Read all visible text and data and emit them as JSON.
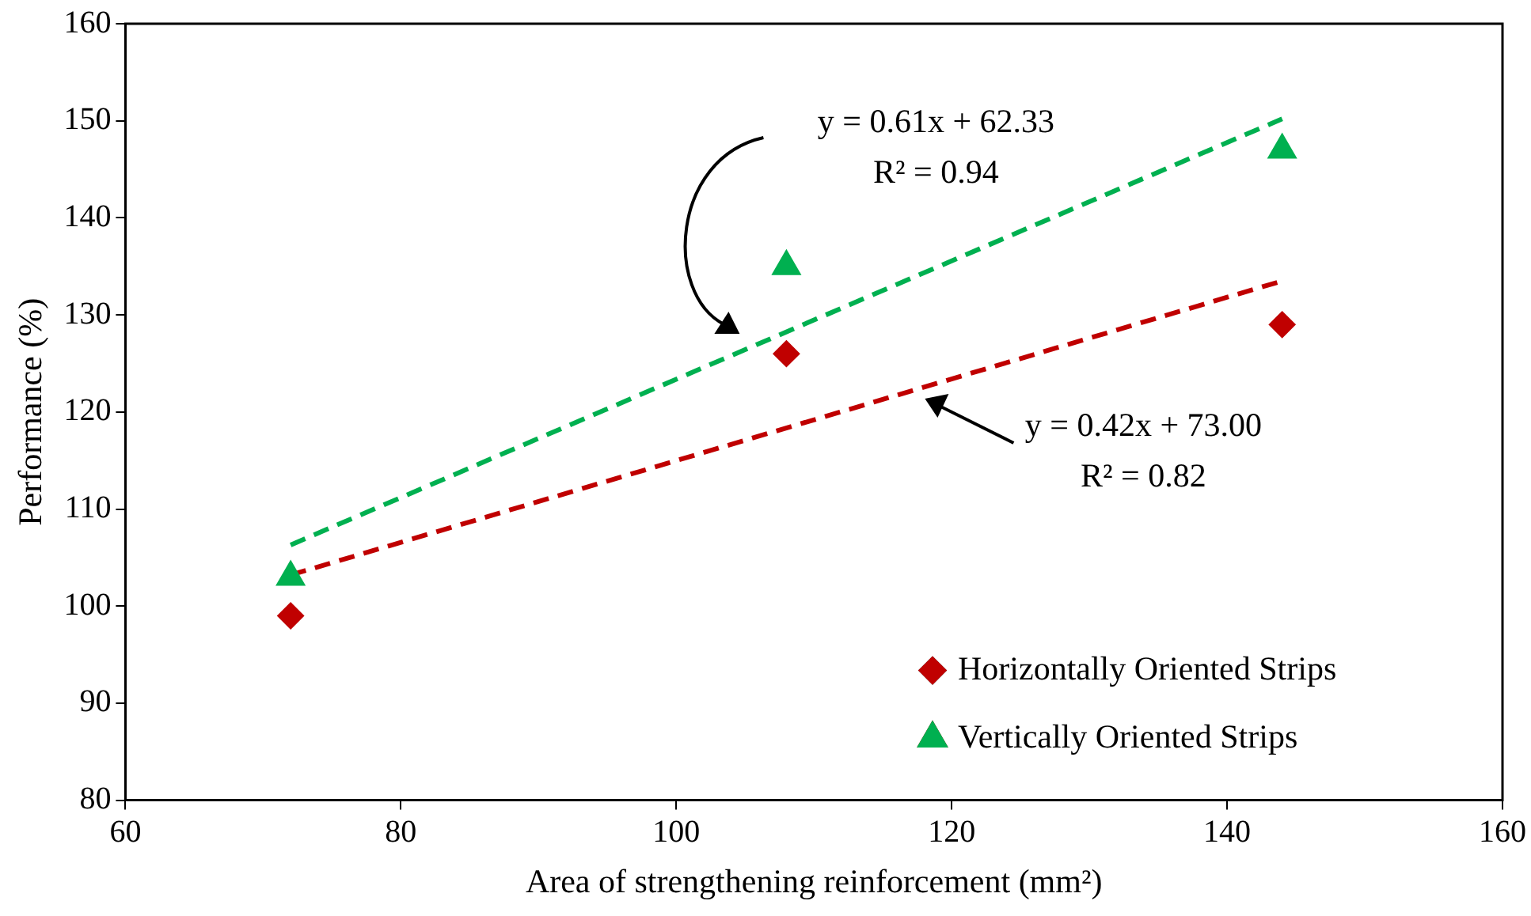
{
  "chart_data": {
    "type": "scatter",
    "xlabel": "Area of strengthening reinforcement (mm²)",
    "ylabel": "Performance (%)",
    "xlim": [
      60,
      160
    ],
    "xticks": [
      60,
      80,
      100,
      120,
      140,
      160
    ],
    "ylim": [
      80,
      160
    ],
    "yticks": [
      80,
      90,
      100,
      110,
      120,
      130,
      140,
      150,
      160
    ],
    "legend": "bottom right",
    "series": [
      {
        "name": "Horizontally Oriented Strips",
        "color": "#c00000",
        "x": [
          72,
          108,
          144
        ],
        "values": [
          99,
          126,
          129
        ],
        "marker": "diamond"
      },
      {
        "name": "Vertically Oriented Strips",
        "color": "#00b050",
        "x": [
          72,
          108,
          144
        ],
        "values": [
          103,
          135,
          147
        ],
        "marker": "triangle"
      },
      {
        "type": "line",
        "color": "#c00000",
        "x": [
          72,
          144
        ],
        "values": [
          103.2,
          133.5
        ],
        "line_style": "dashed",
        "marker": "none"
      },
      {
        "type": "line",
        "color": "#00b050",
        "x": [
          72,
          144
        ],
        "values": [
          106.3,
          150.2
        ],
        "line_style": "dashed",
        "marker": "none"
      }
    ],
    "annotations": [
      "y = 0.61x + 62.33\nR² = 0.94",
      "y = 0.42x + 73.00\nR² = 0.82"
    ]
  }
}
